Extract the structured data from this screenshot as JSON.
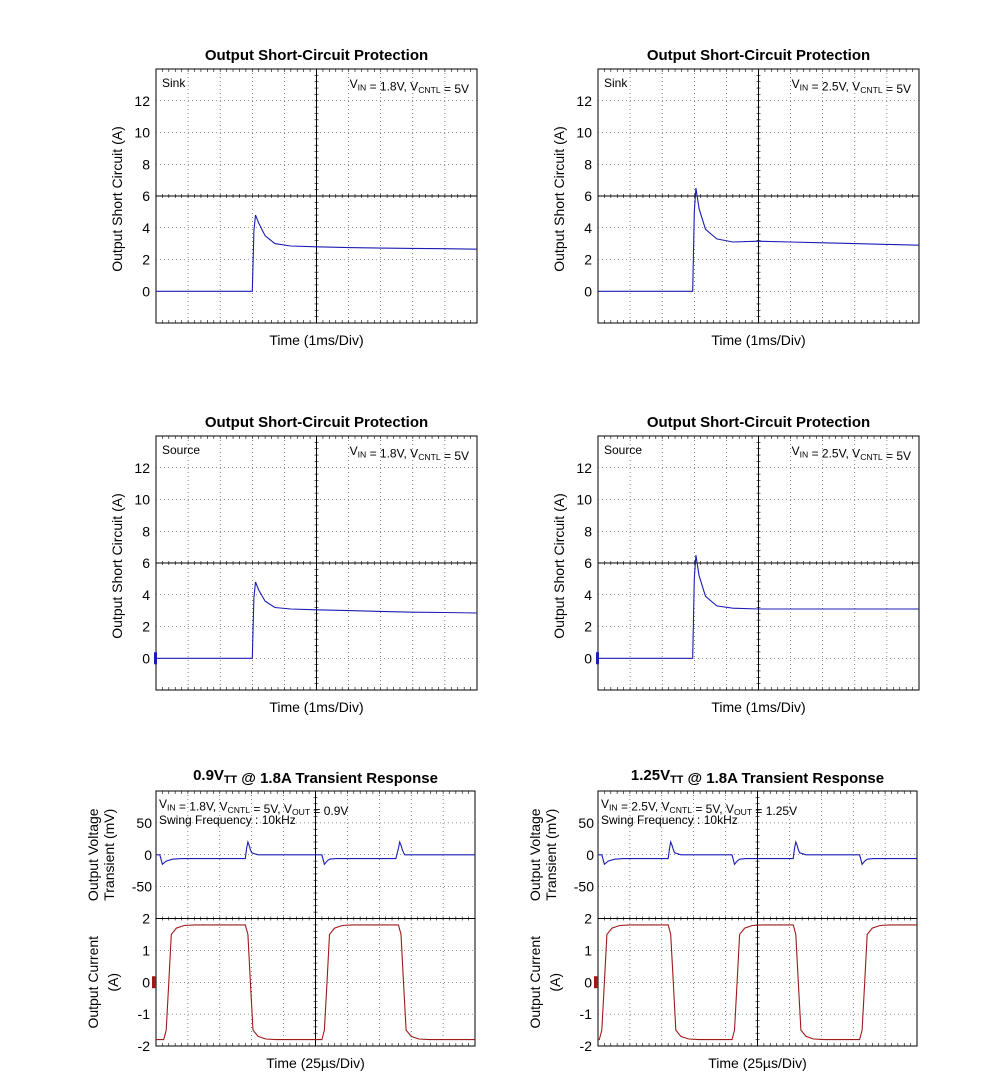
{
  "colors": {
    "trace_blue": "#1c1cb4",
    "trace_red": "#a01818",
    "grid": "#000000",
    "background": "#ffffff"
  },
  "chart_data": [
    {
      "type": "line",
      "title": "Output Short-Circuit Protection",
      "xlabel": "Time (1ms/Div)",
      "ylabel": "Output Short Circuit (A)",
      "mode_label": "Sink",
      "condition_label": "VIN = 1.8V, VCNTL = 5V",
      "yticks": [
        "12",
        "10",
        "8",
        "6",
        "4",
        "2",
        "0"
      ],
      "ylim": [
        -2,
        14
      ],
      "xlim": [
        0,
        10
      ],
      "grid": true,
      "series": [
        {
          "x": [
            0,
            3,
            3.05,
            3.1,
            3.2,
            3.4,
            3.7,
            4.2,
            5,
            6,
            7,
            8,
            9,
            10
          ],
          "values": [
            0,
            0,
            3.8,
            4.8,
            4.3,
            3.5,
            3.0,
            2.85,
            2.8,
            2.75,
            2.72,
            2.7,
            2.68,
            2.65
          ]
        }
      ]
    },
    {
      "type": "line",
      "title": "Output Short-Circuit Protection",
      "xlabel": "Time (1ms/Div)",
      "ylabel": "Output Short Circuit (A)",
      "mode_label": "Sink",
      "condition_label": "VIN = 2.5V, VCNTL = 5V",
      "yticks": [
        "12",
        "10",
        "8",
        "6",
        "4",
        "2",
        "0"
      ],
      "ylim": [
        -2,
        14
      ],
      "xlim": [
        0,
        10
      ],
      "grid": true,
      "series": [
        {
          "x": [
            0,
            2.95,
            3.0,
            3.05,
            3.15,
            3.35,
            3.7,
            4.2,
            5,
            6,
            7,
            8,
            9,
            10
          ],
          "values": [
            0,
            0,
            5.0,
            6.5,
            5.2,
            3.9,
            3.3,
            3.1,
            3.15,
            3.1,
            3.05,
            3.0,
            2.95,
            2.9
          ]
        }
      ]
    },
    {
      "type": "line",
      "title": "Output Short-Circuit Protection",
      "xlabel": "Time (1ms/Div)",
      "ylabel": "Output Short Circuit (A)",
      "mode_label": "Source",
      "condition_label": "VIN = 1.8V, VCNTL = 5V",
      "yticks": [
        "12",
        "10",
        "8",
        "6",
        "4",
        "2",
        "0"
      ],
      "ylim": [
        -2,
        14
      ],
      "xlim": [
        0,
        10
      ],
      "grid": true,
      "series": [
        {
          "x": [
            0,
            3,
            3.05,
            3.1,
            3.2,
            3.4,
            3.7,
            4.2,
            5,
            6,
            7,
            8,
            9,
            10
          ],
          "values": [
            0,
            0,
            3.8,
            4.8,
            4.3,
            3.6,
            3.2,
            3.1,
            3.05,
            3.0,
            2.95,
            2.9,
            2.88,
            2.85
          ]
        }
      ]
    },
    {
      "type": "line",
      "title": "Output Short-Circuit Protection",
      "xlabel": "Time (1ms/Div)",
      "ylabel": "Output Short Circuit (A)",
      "mode_label": "Source",
      "condition_label": "VIN = 2.5V, VCNTL = 5V",
      "yticks": [
        "12",
        "10",
        "8",
        "6",
        "4",
        "2",
        "0"
      ],
      "ylim": [
        -2,
        14
      ],
      "xlim": [
        0,
        10
      ],
      "grid": true,
      "series": [
        {
          "x": [
            0,
            2.95,
            3.0,
            3.05,
            3.15,
            3.35,
            3.7,
            4.2,
            5,
            6,
            7,
            8,
            9,
            10
          ],
          "values": [
            0,
            0,
            5.0,
            6.5,
            5.2,
            3.9,
            3.3,
            3.15,
            3.1,
            3.1,
            3.1,
            3.1,
            3.1,
            3.1
          ]
        }
      ]
    },
    {
      "type": "line",
      "title": "0.9VTT @ 1.8A Transient Response",
      "xlabel": "Time (25µs/Div)",
      "ylabel_top": [
        "Output Voltage",
        "Transient (mV)"
      ],
      "ylabel_bottom": [
        "Output Current",
        "(A)"
      ],
      "condition_label": "VIN = 1.8V, VCNTL = 5V, VOUT = 0.9V",
      "swing_label": "Swing Frequency : 10kHz",
      "yticks_top": [
        "50",
        "0",
        "-50"
      ],
      "yticks_bottom": [
        "2",
        "1",
        "0",
        "-1",
        "-2"
      ],
      "ylim_top": [
        -100,
        100
      ],
      "ylim_bottom": [
        -2,
        2
      ],
      "xlim": [
        0,
        250
      ],
      "grid": true,
      "series": [
        {
          "name": "voltage",
          "x": [
            0,
            3,
            5,
            8,
            13,
            20,
            30,
            45,
            60,
            70,
            71,
            72,
            73,
            74,
            75,
            80,
            110,
            130,
            132,
            134,
            136,
            141,
            148,
            158,
            173,
            188,
            190,
            191,
            192,
            193,
            194,
            195,
            200,
            230,
            250
          ],
          "values": [
            0,
            0,
            -15,
            -10,
            -7,
            -6,
            -6,
            -6,
            -6,
            -6,
            10,
            20,
            15,
            8,
            3,
            0,
            0,
            0,
            -15,
            -10,
            -7,
            -6,
            -6,
            -6,
            -6,
            -6,
            10,
            20,
            15,
            8,
            3,
            0,
            0,
            0,
            0
          ]
        },
        {
          "name": "current",
          "x": [
            0,
            6,
            8,
            10,
            12,
            16,
            22,
            30,
            45,
            60,
            70,
            72,
            74,
            76,
            80,
            86,
            94,
            110,
            120,
            130,
            132,
            134,
            136,
            140,
            146,
            154,
            169,
            184,
            190,
            192,
            194,
            196,
            200,
            206,
            214,
            230,
            250
          ],
          "values": [
            -1.8,
            -1.8,
            -1.5,
            0,
            1.5,
            1.7,
            1.78,
            1.8,
            1.8,
            1.8,
            1.8,
            1.5,
            0,
            -1.5,
            -1.7,
            -1.78,
            -1.8,
            -1.8,
            -1.8,
            -1.8,
            -1.5,
            0,
            1.5,
            1.7,
            1.78,
            1.8,
            1.8,
            1.8,
            1.8,
            1.5,
            0,
            -1.5,
            -1.7,
            -1.78,
            -1.8,
            -1.8,
            -1.8
          ]
        }
      ]
    },
    {
      "type": "line",
      "title": "1.25VTT @ 1.8A Transient Response",
      "xlabel": "Time (25µs/Div)",
      "ylabel_top": [
        "Output Voltage",
        "Transient (mV)"
      ],
      "ylabel_bottom": [
        "Output Current",
        "(A)"
      ],
      "condition_label": "VIN = 2.5V, VCNTL = 5V, VOUT = 1.25V",
      "swing_label": "Swing Frequency : 10kHz",
      "yticks_top": [
        "50",
        "0",
        "-50"
      ],
      "yticks_bottom": [
        "2",
        "1",
        "0",
        "-1",
        "-2"
      ],
      "ylim_top": [
        -100,
        100
      ],
      "ylim_bottom": [
        -2,
        2
      ],
      "xlim": [
        0,
        250
      ],
      "grid": true,
      "series": [
        {
          "name": "voltage",
          "x": [
            0,
            3,
            5,
            8,
            13,
            20,
            30,
            45,
            55,
            56,
            57,
            58,
            59,
            60,
            65,
            100,
            105,
            107,
            109,
            111,
            116,
            123,
            133,
            148,
            153,
            154,
            155,
            156,
            157,
            158,
            163,
            200,
            205,
            207,
            209,
            211,
            216,
            223,
            233,
            250
          ],
          "values": [
            0,
            0,
            -15,
            -10,
            -7,
            -6,
            -6,
            -6,
            -6,
            10,
            20,
            15,
            8,
            3,
            0,
            0,
            0,
            -15,
            -10,
            -7,
            -6,
            -6,
            -6,
            -6,
            -6,
            10,
            20,
            15,
            8,
            3,
            0,
            0,
            0,
            -15,
            -10,
            -7,
            -6,
            -6,
            -6,
            -6
          ]
        },
        {
          "name": "current",
          "x": [
            0,
            1,
            3,
            5,
            7,
            11,
            17,
            25,
            40,
            55,
            57,
            59,
            61,
            65,
            71,
            79,
            95,
            105,
            107,
            109,
            111,
            115,
            121,
            129,
            144,
            153,
            155,
            157,
            159,
            163,
            169,
            177,
            195,
            205,
            207,
            209,
            211,
            215,
            221,
            229,
            250
          ],
          "values": [
            -1.8,
            -1.8,
            -1.5,
            0,
            1.5,
            1.7,
            1.78,
            1.8,
            1.8,
            1.8,
            1.5,
            0,
            -1.5,
            -1.7,
            -1.78,
            -1.8,
            -1.8,
            -1.8,
            -1.5,
            0,
            1.5,
            1.7,
            1.78,
            1.8,
            1.8,
            1.8,
            1.5,
            0,
            -1.5,
            -1.7,
            -1.78,
            -1.8,
            -1.8,
            -1.8,
            -1.5,
            0,
            1.5,
            1.7,
            1.78,
            1.8,
            1.8
          ]
        }
      ]
    }
  ]
}
